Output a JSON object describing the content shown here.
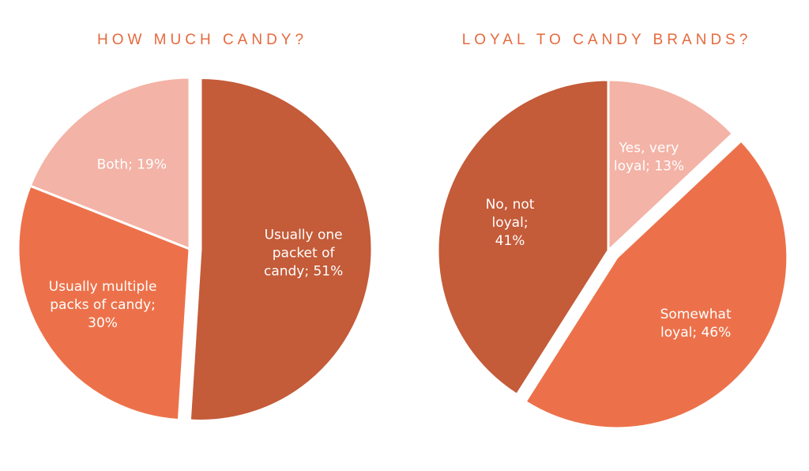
{
  "chart_data": [
    {
      "type": "pie",
      "title": "HOW MUCH CANDY?",
      "slices": [
        {
          "name": "Usually one packet of candy",
          "value": 51,
          "label_lines": [
            "Usually one",
            "packet of",
            "candy; 51%"
          ],
          "color": "#c45b39"
        },
        {
          "name": "Usually multiple packs of candy",
          "value": 30,
          "label_lines": [
            "Usually multiple",
            "packs of candy;",
            "30%"
          ],
          "color": "#ec714a"
        },
        {
          "name": "Both",
          "value": 19,
          "label_lines": [
            "Both; 19%"
          ],
          "color": "#f3b3a6"
        }
      ],
      "exploded": "Usually one packet of candy"
    },
    {
      "type": "pie",
      "title": "LOYAL TO CANDY BRANDS?",
      "slices": [
        {
          "name": "Yes, very loyal",
          "value": 13,
          "label_lines": [
            "Yes, very",
            "loyal; 13%"
          ],
          "color": "#f3b3a6"
        },
        {
          "name": "Somewhat loyal",
          "value": 46,
          "label_lines": [
            "Somewhat",
            "loyal; 46%"
          ],
          "color": "#ec714a"
        },
        {
          "name": "No, not loyal",
          "value": 41,
          "label_lines": [
            "No, not",
            "loyal;",
            "41%"
          ],
          "color": "#c45b39"
        }
      ],
      "exploded": "Somewhat loyal"
    }
  ]
}
